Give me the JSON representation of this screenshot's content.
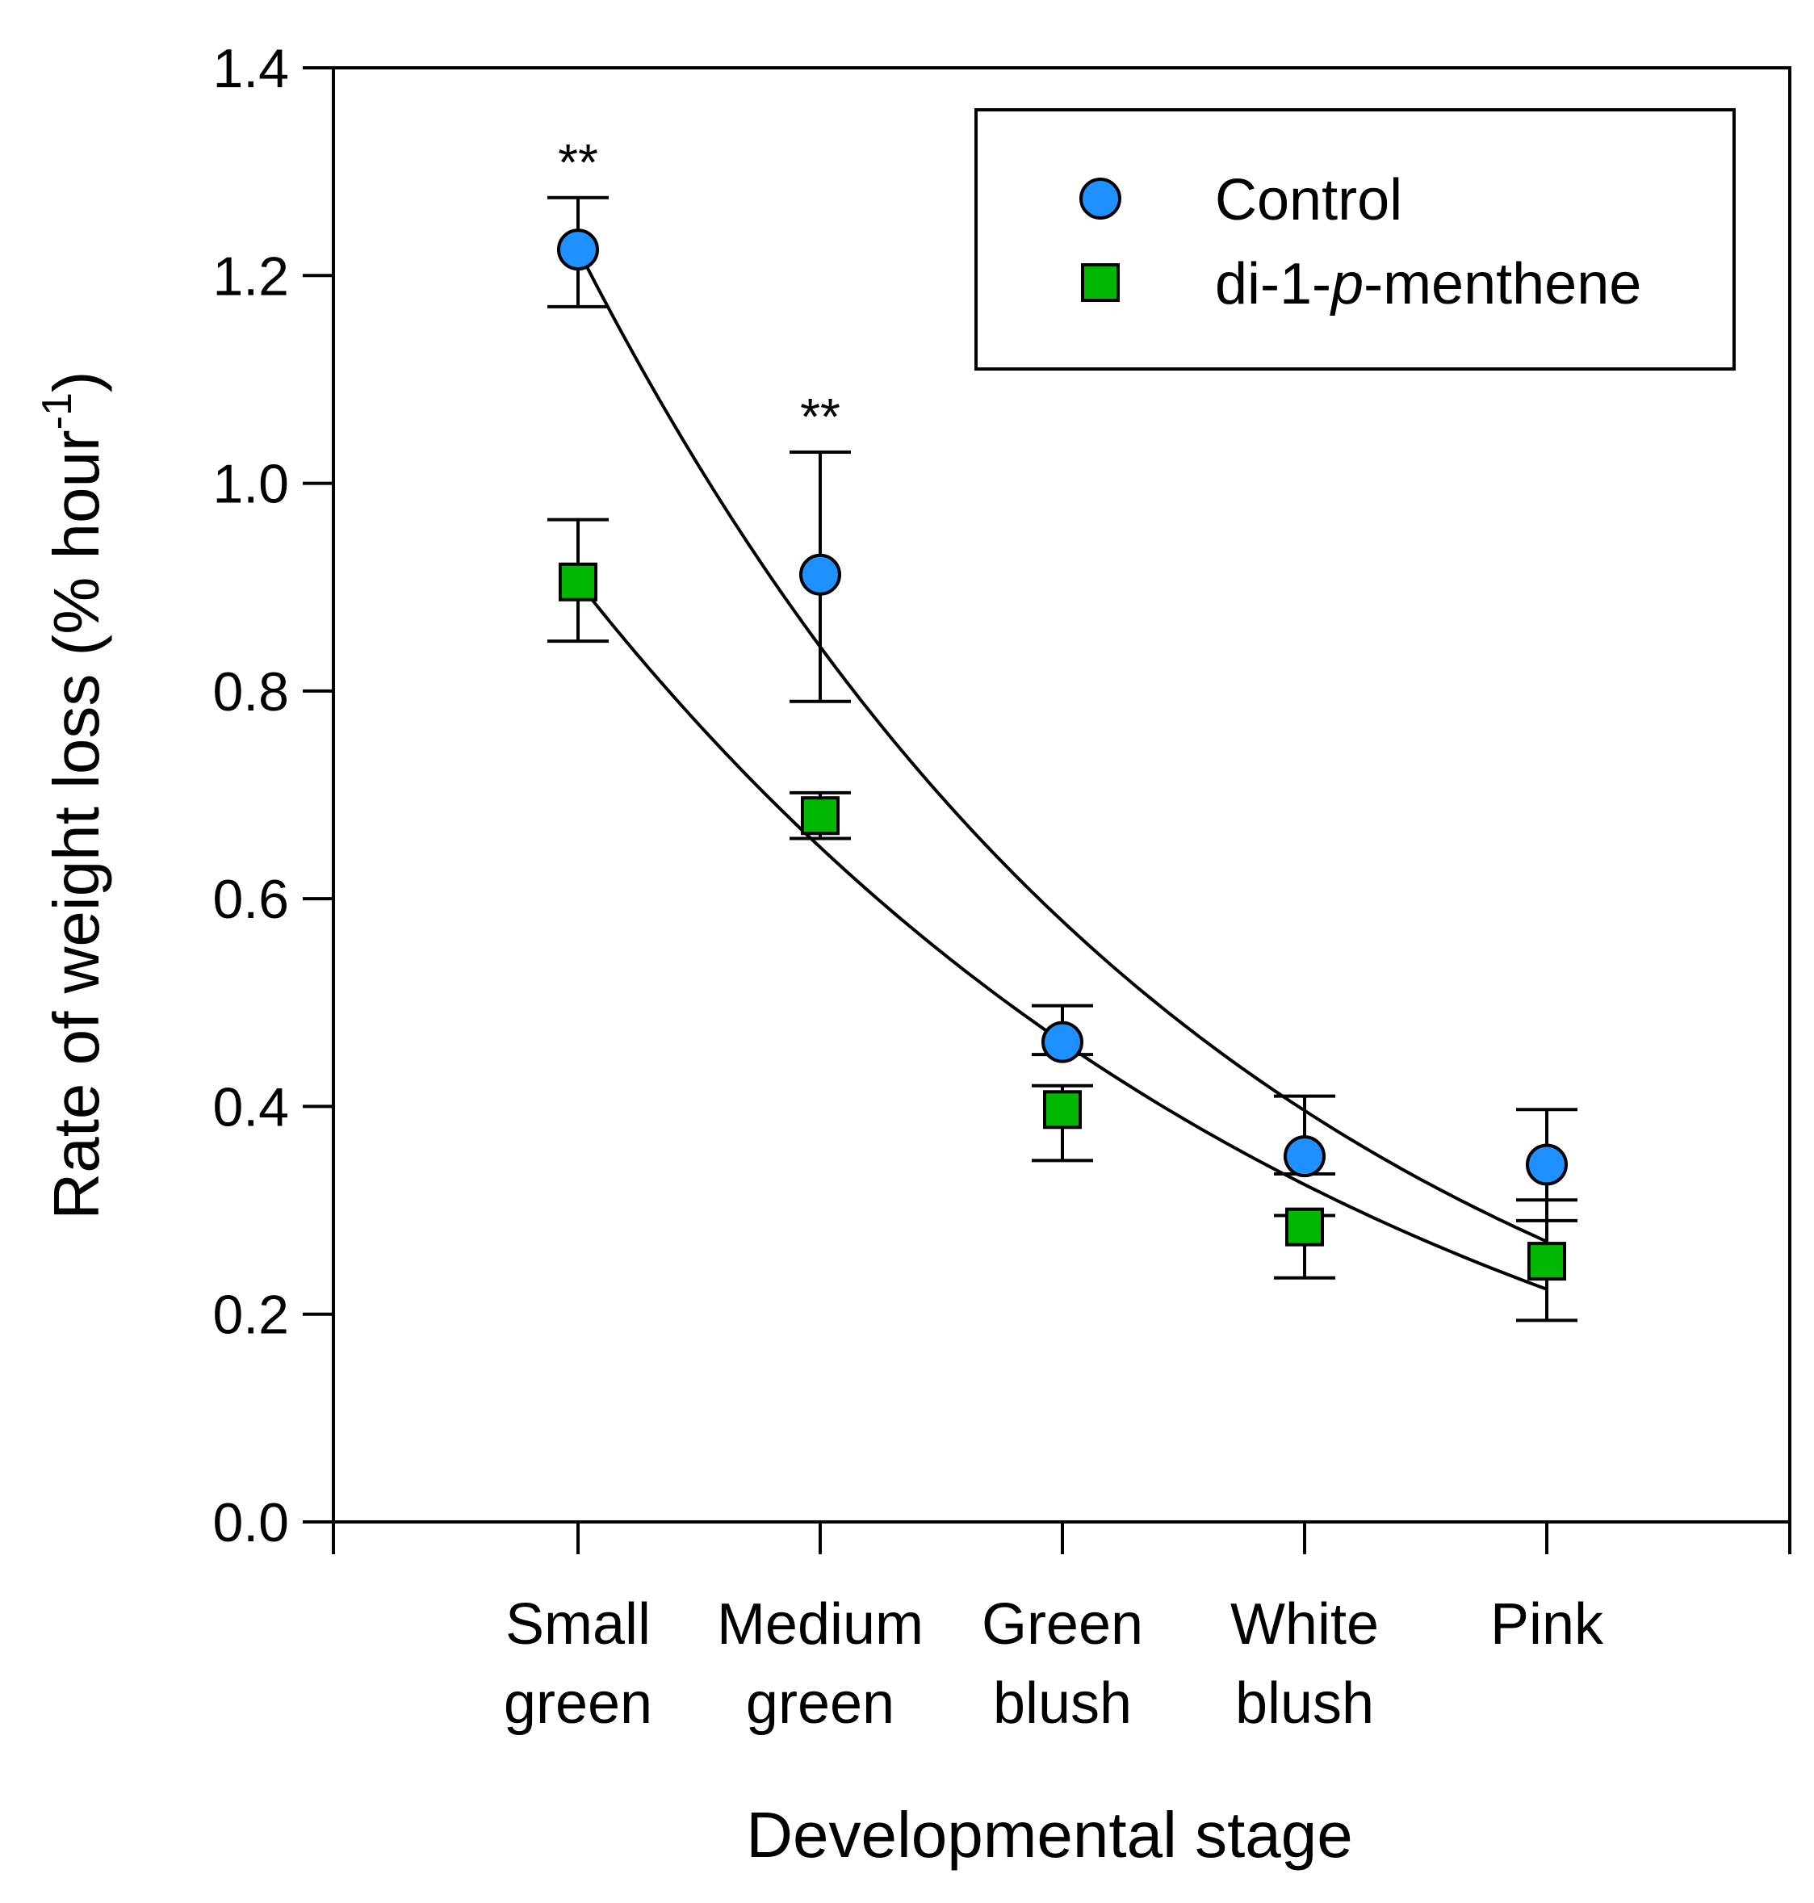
{
  "chart_data": {
    "type": "scatter",
    "xlabel": "Developmental stage",
    "ylabel": {
      "main": "Rate of weight loss (% hour",
      "sup": "-1",
      "end": ")"
    },
    "ylim": [
      0,
      1.4
    ],
    "yticks": [
      "0.0",
      "0.2",
      "0.4",
      "0.6",
      "0.8",
      "1.0",
      "1.2",
      "1.4"
    ],
    "categories": [
      [
        "Small",
        "green"
      ],
      [
        "Medium",
        "green"
      ],
      [
        "Green",
        "blush"
      ],
      [
        "White",
        "blush"
      ],
      [
        "Pink"
      ]
    ],
    "grid": false,
    "legend_position": "top-right",
    "series": [
      {
        "name": "Control",
        "marker": "circle",
        "color": "#1e90ff",
        "values": [
          1.225,
          0.912,
          0.462,
          0.352,
          0.344
        ],
        "err_low": [
          1.17,
          0.79,
          0.45,
          0.335,
          0.29
        ],
        "err_high": [
          1.275,
          1.03,
          0.497,
          0.41,
          0.397
        ]
      },
      {
        "name_parts": [
          "di-1-",
          "p",
          "-menthene"
        ],
        "marker": "square",
        "color": "#00b800",
        "values": [
          0.905,
          0.68,
          0.397,
          0.284,
          0.251
        ],
        "err_low": [
          0.848,
          0.658,
          0.348,
          0.235,
          0.194
        ],
        "err_high": [
          0.965,
          0.702,
          0.42,
          0.295,
          0.31
        ]
      }
    ],
    "fit_curves": [
      {
        "series": 0,
        "x_start": 0,
        "x_end": 4,
        "y_start": 1.225,
        "y_end": 0.27,
        "decay": 0.37
      },
      {
        "series": 1,
        "x_start": 0,
        "x_end": 4,
        "y_start": 0.905,
        "y_end": 0.224,
        "decay": 0.31
      }
    ],
    "annotations": [
      {
        "text": "**",
        "category_index": 0
      },
      {
        "text": "**",
        "category_index": 1
      }
    ]
  }
}
